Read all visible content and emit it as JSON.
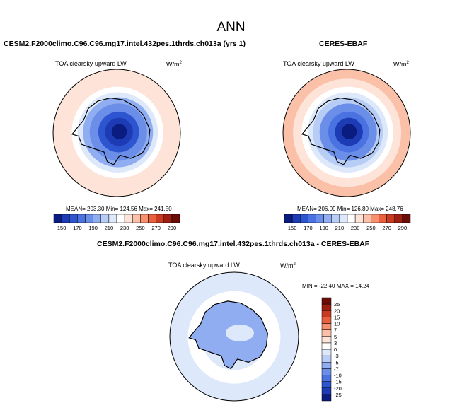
{
  "season": "ANN",
  "panels": [
    {
      "title": "CESM2.F2000climo.C96.C96.mg17.intel.432pes.1thrds.ch013a (yrs 1)",
      "variable": "TOA clearsky upward LW",
      "units": "W/m",
      "units_exp": "2",
      "stats": "MEAN= 203.30   Min= 124.56   Max= 241.50"
    },
    {
      "title": "CERES-EBAF",
      "variable": "TOA clearsky upward LW",
      "units": "W/m",
      "units_exp": "2",
      "stats": "MEAN= 206.09   Min= 126.80   Max= 248.76"
    },
    {
      "title": "CESM2.F2000climo.C96.C96.mg17.intel.432pes.1thrds.ch013a - CERES-EBAF",
      "variable": "TOA clearsky upward LW",
      "units": "W/m",
      "units_exp": "2",
      "stats": "MIN = -22.40  MAX =  14.24"
    }
  ],
  "chart_data": [
    {
      "type": "heatmap",
      "projection": "polar stereographic, south pole",
      "title": "CESM2.F2000climo.C96.C96.mg17.intel.432pes.1thrds.ch013a (yrs 1)",
      "field": "TOA clearsky upward LW",
      "units": "W/m2",
      "mean": 203.3,
      "min": 124.56,
      "max": 241.5,
      "colorbar": {
        "orientation": "horizontal",
        "levels": [
          150,
          160,
          170,
          180,
          190,
          200,
          210,
          220,
          230,
          240,
          250,
          260,
          270,
          280,
          290
        ],
        "tick_labels": [
          "150",
          "170",
          "190",
          "210",
          "230",
          "250",
          "270",
          "290"
        ],
        "colors": [
          "#0a1c80",
          "#1c3bb4",
          "#2d55d0",
          "#4a72e0",
          "#6b8fe8",
          "#8fadf0",
          "#b7cdf6",
          "#dde8fb",
          "#ffffff",
          "#fde3d8",
          "#fac0a8",
          "#f6906f",
          "#e8603e",
          "#c93a20",
          "#9e1f12",
          "#6a0c08"
        ]
      },
      "rings_inner_to_outer": [
        {
          "radius": 0.12,
          "value": 140
        },
        {
          "radius": 0.22,
          "value": 150
        },
        {
          "radius": 0.32,
          "value": 165
        },
        {
          "radius": 0.45,
          "value": 180
        },
        {
          "radius": 0.55,
          "value": 195
        },
        {
          "radius": 0.63,
          "value": 210
        },
        {
          "radius": 0.72,
          "value": 225
        },
        {
          "radius": 0.85,
          "value": 232
        },
        {
          "radius": 1.0,
          "value": 236
        }
      ]
    },
    {
      "type": "heatmap",
      "projection": "polar stereographic, south pole",
      "title": "CERES-EBAF",
      "field": "TOA clearsky upward LW",
      "units": "W/m2",
      "mean": 206.09,
      "min": 126.8,
      "max": 248.76,
      "colorbar": {
        "orientation": "horizontal",
        "levels": [
          150,
          160,
          170,
          180,
          190,
          200,
          210,
          220,
          230,
          240,
          250,
          260,
          270,
          280,
          290
        ],
        "tick_labels": [
          "150",
          "170",
          "190",
          "210",
          "230",
          "250",
          "270",
          "290"
        ],
        "colors": [
          "#0a1c80",
          "#1c3bb4",
          "#2d55d0",
          "#4a72e0",
          "#6b8fe8",
          "#8fadf0",
          "#b7cdf6",
          "#dde8fb",
          "#ffffff",
          "#fde3d8",
          "#fac0a8",
          "#f6906f",
          "#e8603e",
          "#c93a20",
          "#9e1f12",
          "#6a0c08"
        ]
      },
      "rings_inner_to_outer": [
        {
          "radius": 0.12,
          "value": 145
        },
        {
          "radius": 0.22,
          "value": 158
        },
        {
          "radius": 0.32,
          "value": 170
        },
        {
          "radius": 0.45,
          "value": 185
        },
        {
          "radius": 0.55,
          "value": 200
        },
        {
          "radius": 0.63,
          "value": 212
        },
        {
          "radius": 0.72,
          "value": 228
        },
        {
          "radius": 0.85,
          "value": 238
        },
        {
          "radius": 1.0,
          "value": 244
        }
      ]
    },
    {
      "type": "heatmap",
      "projection": "polar stereographic, south pole",
      "title": "CESM2.F2000climo.C96.C96.mg17.intel.432pes.1thrds.ch013a - CERES-EBAF",
      "field": "TOA clearsky upward LW",
      "units": "W/m2",
      "min": -22.4,
      "max": 14.24,
      "colorbar": {
        "orientation": "vertical",
        "levels": [
          -25,
          -20,
          -15,
          -10,
          -7,
          -5,
          -3,
          0,
          3,
          5,
          7,
          10,
          15,
          20,
          25
        ],
        "tick_labels": [
          "-25",
          "-20",
          "-15",
          "-10",
          "-7",
          "-5",
          "-3",
          "0",
          "3",
          "5",
          "7",
          "10",
          "15",
          "20",
          "25"
        ],
        "colors": [
          "#0a1c80",
          "#1c3bb4",
          "#2d55d0",
          "#4a72e0",
          "#6b8fe8",
          "#8fadf0",
          "#b7cdf6",
          "#dde8fb",
          "#ffffff",
          "#fde3d8",
          "#fac0a8",
          "#f6906f",
          "#e8603e",
          "#c93a20",
          "#9e1f12",
          "#6a0c08"
        ]
      },
      "rings_inner_to_outer": [
        {
          "radius": 0.3,
          "value": -4
        },
        {
          "radius": 0.5,
          "value": -1
        },
        {
          "radius": 0.6,
          "value": 0
        },
        {
          "radius": 0.72,
          "value": 1.5
        },
        {
          "radius": 0.85,
          "value": -1
        },
        {
          "radius": 1.0,
          "value": -2
        }
      ]
    }
  ]
}
